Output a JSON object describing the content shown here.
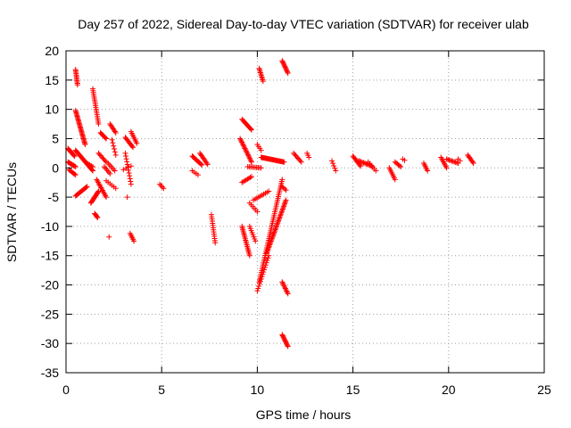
{
  "chart_data": {
    "type": "scatter",
    "title": "Day 257 of 2022, Sidereal Day-to-day VTEC variation (SDTVAR) for receiver ulab",
    "xlabel": "GPS time / hours",
    "ylabel": "SDTVAR / TECUs",
    "xlim": [
      0,
      25
    ],
    "ylim": [
      -35,
      20
    ],
    "xticks": [
      0,
      5,
      10,
      15,
      20,
      25
    ],
    "yticks": [
      -35,
      -30,
      -25,
      -20,
      -15,
      -10,
      -5,
      0,
      5,
      10,
      15,
      20
    ],
    "grid": true,
    "marker": "+",
    "color": "#ff0000",
    "segments": [
      {
        "x": [
          0.1,
          0.45
        ],
        "y": [
          3.3,
          2.0
        ],
        "n": 12
      },
      {
        "x": [
          0.1,
          0.5
        ],
        "y": [
          1.0,
          0.2
        ],
        "n": 10
      },
      {
        "x": [
          0.15,
          0.5
        ],
        "y": [
          -0.3,
          -1.2
        ],
        "n": 8
      },
      {
        "x": [
          0.5,
          0.6
        ],
        "y": [
          16.8,
          14.2
        ],
        "n": 12
      },
      {
        "x": [
          0.5,
          1.0
        ],
        "y": [
          9.8,
          4.0
        ],
        "n": 30
      },
      {
        "x": [
          0.5,
          1.4
        ],
        "y": [
          3.0,
          -0.5
        ],
        "n": 26
      },
      {
        "x": [
          0.5,
          1.1
        ],
        "y": [
          -4.8,
          -3.2
        ],
        "n": 14
      },
      {
        "x": [
          1.0,
          1.4
        ],
        "y": [
          1.0,
          0.2
        ],
        "n": 6
      },
      {
        "x": [
          1.4,
          1.7
        ],
        "y": [
          13.5,
          7.5
        ],
        "n": 20
      },
      {
        "x": [
          1.3,
          1.7
        ],
        "y": [
          -6.0,
          -4.0
        ],
        "n": 14
      },
      {
        "x": [
          1.5,
          1.65
        ],
        "y": [
          -7.8,
          -8.5
        ],
        "n": 6
      },
      {
        "x": [
          1.6,
          2.1
        ],
        "y": [
          -2.0,
          -5.0
        ],
        "n": 14
      },
      {
        "x": [
          1.8,
          2.1
        ],
        "y": [
          6.0,
          5.0
        ],
        "n": 8
      },
      {
        "x": [
          1.7,
          2.1
        ],
        "y": [
          2.5,
          1.0
        ],
        "n": 8
      },
      {
        "x": [
          2.0,
          2.3
        ],
        "y": [
          0.2,
          -1.0
        ],
        "n": 6
      },
      {
        "x": [
          2.3,
          2.6
        ],
        "y": [
          7.5,
          6.0
        ],
        "n": 8
      },
      {
        "x": [
          2.4,
          2.6
        ],
        "y": [
          4.8,
          2.2
        ],
        "n": 6
      },
      {
        "x": [
          2.2,
          2.55
        ],
        "y": [
          0.8,
          -0.5
        ],
        "n": 6
      },
      {
        "x": [
          2.1,
          2.6
        ],
        "y": [
          -2.2,
          -3.5
        ],
        "n": 6
      },
      {
        "x": [
          3.1,
          3.5
        ],
        "y": [
          5.2,
          3.5
        ],
        "n": 10
      },
      {
        "x": [
          3.1,
          3.4
        ],
        "y": [
          2.5,
          -2.8
        ],
        "n": 12
      },
      {
        "x": [
          3.4,
          3.7
        ],
        "y": [
          6.2,
          4.2
        ],
        "n": 8
      },
      {
        "x": [
          3.35,
          3.55
        ],
        "y": [
          -11.2,
          -12.5
        ],
        "n": 6
      },
      {
        "x": [
          6.6,
          7.1
        ],
        "y": [
          2.0,
          0.5
        ],
        "n": 12
      },
      {
        "x": [
          7.0,
          7.4
        ],
        "y": [
          2.5,
          0.6
        ],
        "n": 10
      },
      {
        "x": [
          6.6,
          6.9
        ],
        "y": [
          -0.5,
          -1.2
        ],
        "n": 4
      },
      {
        "x": [
          7.6,
          7.8
        ],
        "y": [
          -8.0,
          -12.8
        ],
        "n": 14
      },
      {
        "x": [
          9.1,
          9.7
        ],
        "y": [
          5.0,
          1.0
        ],
        "n": 20
      },
      {
        "x": [
          9.2,
          9.7
        ],
        "y": [
          8.3,
          6.5
        ],
        "n": 12
      },
      {
        "x": [
          9.2,
          9.7
        ],
        "y": [
          -2.5,
          -1.5
        ],
        "n": 8
      },
      {
        "x": [
          9.2,
          9.6
        ],
        "y": [
          -10.0,
          -15.0
        ],
        "n": 20
      },
      {
        "x": [
          9.6,
          9.9
        ],
        "y": [
          -10.0,
          -12.5
        ],
        "n": 8
      },
      {
        "x": [
          10.1,
          10.3
        ],
        "y": [
          17.0,
          14.8
        ],
        "n": 10
      },
      {
        "x": [
          10.0,
          10.2
        ],
        "y": [
          4.0,
          3.0
        ],
        "n": 4
      },
      {
        "x": [
          10.2,
          11.4
        ],
        "y": [
          1.8,
          1.0
        ],
        "n": 30
      },
      {
        "x": [
          9.5,
          10.2
        ],
        "y": [
          0.2,
          0.0
        ],
        "n": 10
      },
      {
        "x": [
          10.1,
          11.3
        ],
        "y": [
          -19.5,
          -2.0
        ],
        "n": 55
      },
      {
        "x": [
          10.0,
          10.6
        ],
        "y": [
          -21.0,
          -15.0
        ],
        "n": 16
      },
      {
        "x": [
          10.5,
          11.5
        ],
        "y": [
          -14.5,
          -5.5
        ],
        "n": 42
      },
      {
        "x": [
          9.8,
          10.6
        ],
        "y": [
          -5.5,
          -4.0
        ],
        "n": 10
      },
      {
        "x": [
          9.6,
          10.0
        ],
        "y": [
          -6.0,
          -7.5
        ],
        "n": 6
      },
      {
        "x": [
          11.3,
          11.5
        ],
        "y": [
          -3.2,
          -3.8
        ],
        "n": 4
      },
      {
        "x": [
          11.3,
          11.6
        ],
        "y": [
          -19.5,
          -21.5
        ],
        "n": 10
      },
      {
        "x": [
          11.3,
          11.6
        ],
        "y": [
          -28.5,
          -30.5
        ],
        "n": 12
      },
      {
        "x": [
          11.3,
          11.6
        ],
        "y": [
          18.3,
          16.2
        ],
        "n": 12
      },
      {
        "x": [
          11.9,
          12.3
        ],
        "y": [
          2.5,
          1.0
        ],
        "n": 8
      },
      {
        "x": [
          12.6,
          12.7
        ],
        "y": [
          2.5,
          1.8
        ],
        "n": 3
      },
      {
        "x": [
          13.9,
          14.1
        ],
        "y": [
          1.2,
          -0.5
        ],
        "n": 5
      },
      {
        "x": [
          15.0,
          15.4
        ],
        "y": [
          2.0,
          0.3
        ],
        "n": 10
      },
      {
        "x": [
          15.3,
          16.0
        ],
        "y": [
          1.2,
          0.3
        ],
        "n": 12
      },
      {
        "x": [
          15.8,
          16.2
        ],
        "y": [
          1.0,
          -0.5
        ],
        "n": 6
      },
      {
        "x": [
          16.9,
          17.2
        ],
        "y": [
          0.0,
          -2.0
        ],
        "n": 8
      },
      {
        "x": [
          17.2,
          17.5
        ],
        "y": [
          1.0,
          0.2
        ],
        "n": 6
      },
      {
        "x": [
          17.6,
          17.7
        ],
        "y": [
          1.5,
          1.3
        ],
        "n": 2
      },
      {
        "x": [
          18.7,
          18.9
        ],
        "y": [
          0.8,
          -0.5
        ],
        "n": 6
      },
      {
        "x": [
          19.6,
          19.9
        ],
        "y": [
          1.8,
          0.0
        ],
        "n": 8
      },
      {
        "x": [
          19.9,
          20.5
        ],
        "y": [
          1.5,
          0.8
        ],
        "n": 10
      },
      {
        "x": [
          20.5,
          20.6
        ],
        "y": [
          1.5,
          1.2
        ],
        "n": 2
      },
      {
        "x": [
          21.0,
          21.3
        ],
        "y": [
          2.2,
          0.8
        ],
        "n": 8
      },
      {
        "x": [
          4.9,
          5.1
        ],
        "y": [
          -2.8,
          -3.5
        ],
        "n": 4
      },
      {
        "x": [
          2.25,
          2.25
        ],
        "y": [
          -11.8,
          -11.8
        ],
        "n": 1
      },
      {
        "x": [
          3.2,
          3.2
        ],
        "y": [
          -5.0,
          -5.0
        ],
        "n": 1
      },
      {
        "x": [
          3.0,
          3.4
        ],
        "y": [
          -0.3,
          0.3
        ],
        "n": 4
      }
    ]
  }
}
